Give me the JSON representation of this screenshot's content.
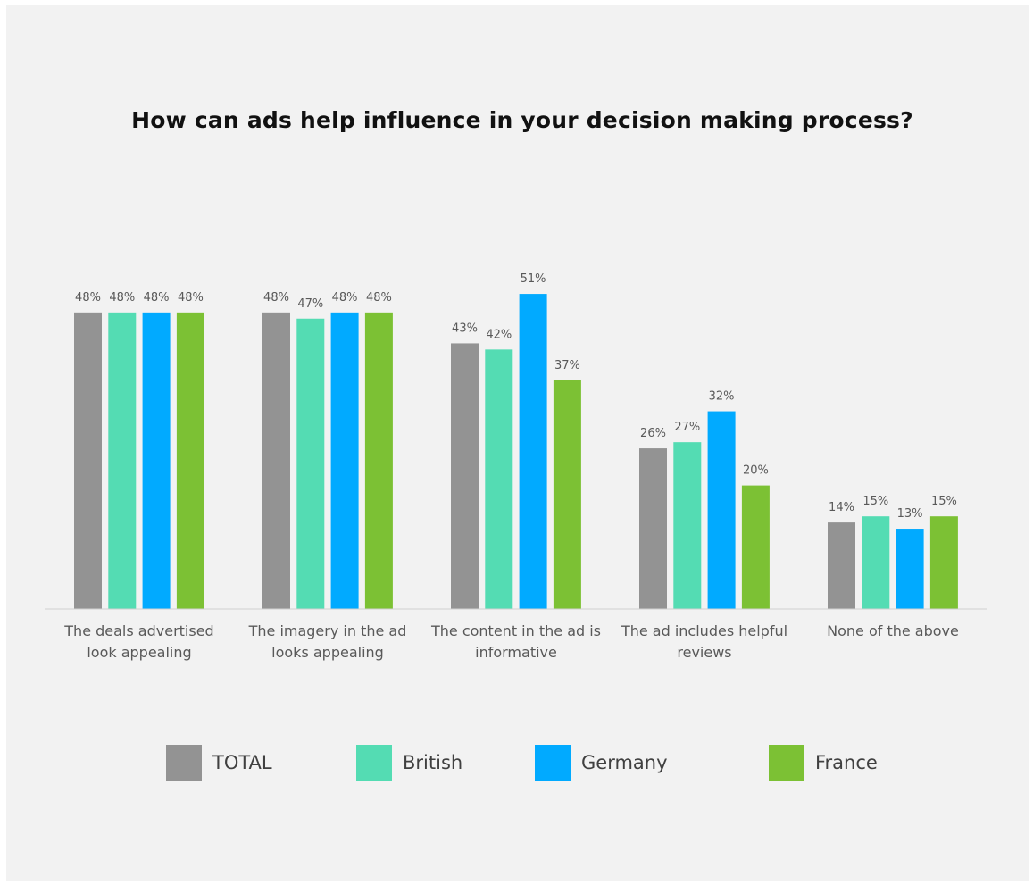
{
  "chart_data": {
    "type": "bar",
    "title": "How can ads help influence in your decision making process?",
    "xlabel": "",
    "ylabel": "",
    "ylim": [
      0,
      60
    ],
    "grid": false,
    "legend_position": "bottom",
    "value_suffix": "%",
    "categories": [
      [
        "The deals advertised",
        "look appealing"
      ],
      [
        "The imagery in the ad",
        "looks appealing"
      ],
      [
        "The content in the ad is",
        "informative"
      ],
      [
        "The ad includes helpful",
        "reviews"
      ],
      [
        "None of the above"
      ]
    ],
    "series": [
      {
        "name": "TOTAL",
        "color": "#939393",
        "values": [
          48,
          48,
          43,
          26,
          14
        ]
      },
      {
        "name": "British",
        "color": "#54dcb3",
        "values": [
          48,
          47,
          42,
          27,
          15
        ]
      },
      {
        "name": "Germany",
        "color": "#01aaff",
        "values": [
          48,
          48,
          51,
          32,
          13
        ]
      },
      {
        "name": "France",
        "color": "#7cc134",
        "values": [
          48,
          48,
          37,
          20,
          15
        ]
      }
    ]
  }
}
